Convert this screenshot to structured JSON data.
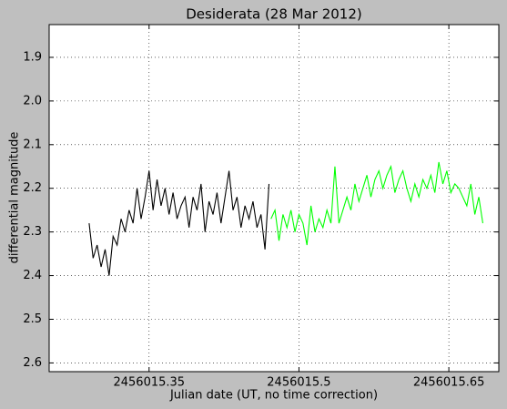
{
  "chart_data": {
    "type": "line",
    "title": "Desiderata (28 Mar 2012)",
    "x_label": "Julian date (UT, no time correction)",
    "y_label": "differential magnitude",
    "xlim": [
      2456015.25,
      2456015.7
    ],
    "ylim": [
      2.62,
      1.825
    ],
    "xticks": [
      2456015.35,
      2456015.5,
      2456015.65
    ],
    "yticks": [
      1.9,
      {
        "value": 2,
        "label": "2.0"
      },
      2.1,
      2.2,
      2.3,
      2.4,
      2.5,
      2.6
    ],
    "grid": true,
    "series": [
      {
        "color": "#000000",
        "x": [
          2456015.29,
          2456015.294,
          2456015.298,
          2456015.302,
          2456015.306,
          2456015.31,
          2456015.314,
          2456015.318,
          2456015.322,
          2456015.326,
          2456015.33,
          2456015.334,
          2456015.338,
          2456015.342,
          2456015.346,
          2456015.35,
          2456015.354,
          2456015.358,
          2456015.362,
          2456015.366,
          2456015.37,
          2456015.374,
          2456015.378,
          2456015.382,
          2456015.386,
          2456015.39,
          2456015.394,
          2456015.398,
          2456015.402,
          2456015.406,
          2456015.41,
          2456015.414,
          2456015.418,
          2456015.422,
          2456015.426,
          2456015.43,
          2456015.434,
          2456015.438,
          2456015.442,
          2456015.446,
          2456015.45,
          2456015.454,
          2456015.458,
          2456015.462,
          2456015.466,
          2456015.47
        ],
        "values": [
          2.28,
          2.36,
          2.33,
          2.38,
          2.34,
          2.4,
          2.31,
          2.33,
          2.27,
          2.3,
          2.25,
          2.28,
          2.2,
          2.27,
          2.22,
          2.16,
          2.25,
          2.18,
          2.24,
          2.2,
          2.26,
          2.21,
          2.27,
          2.24,
          2.22,
          2.29,
          2.22,
          2.25,
          2.19,
          2.3,
          2.23,
          2.26,
          2.21,
          2.28,
          2.22,
          2.16,
          2.25,
          2.22,
          2.29,
          2.24,
          2.27,
          2.23,
          2.29,
          2.26,
          2.34,
          2.19
        ]
      },
      {
        "color": "#00ff00",
        "x": [
          2456015.472,
          2456015.476,
          2456015.48,
          2456015.484,
          2456015.488,
          2456015.492,
          2456015.496,
          2456015.5,
          2456015.504,
          2456015.508,
          2456015.512,
          2456015.516,
          2456015.52,
          2456015.524,
          2456015.528,
          2456015.532,
          2456015.536,
          2456015.54,
          2456015.544,
          2456015.548,
          2456015.552,
          2456015.556,
          2456015.56,
          2456015.564,
          2456015.568,
          2456015.572,
          2456015.576,
          2456015.58,
          2456015.584,
          2456015.588,
          2456015.592,
          2456015.596,
          2456015.6,
          2456015.604,
          2456015.608,
          2456015.612,
          2456015.616,
          2456015.62,
          2456015.624,
          2456015.628,
          2456015.632,
          2456015.636,
          2456015.64,
          2456015.644,
          2456015.648,
          2456015.652,
          2456015.656,
          2456015.66,
          2456015.664,
          2456015.668,
          2456015.672,
          2456015.676,
          2456015.68,
          2456015.684
        ],
        "values": [
          2.27,
          2.25,
          2.32,
          2.26,
          2.29,
          2.25,
          2.3,
          2.26,
          2.28,
          2.33,
          2.24,
          2.3,
          2.27,
          2.29,
          2.25,
          2.28,
          2.15,
          2.28,
          2.25,
          2.22,
          2.25,
          2.19,
          2.23,
          2.2,
          2.17,
          2.22,
          2.18,
          2.16,
          2.2,
          2.17,
          2.15,
          2.21,
          2.18,
          2.16,
          2.2,
          2.23,
          2.19,
          2.22,
          2.18,
          2.2,
          2.17,
          2.21,
          2.14,
          2.19,
          2.16,
          2.21,
          2.19,
          2.2,
          2.22,
          2.24,
          2.19,
          2.26,
          2.22,
          2.28
        ]
      }
    ]
  }
}
